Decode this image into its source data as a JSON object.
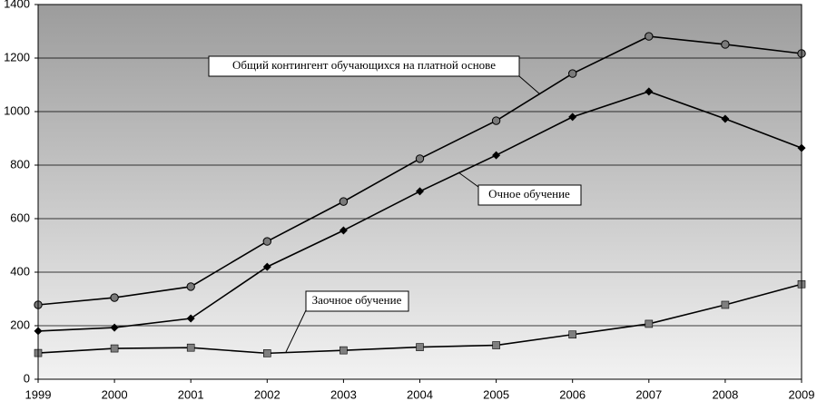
{
  "chart_data": {
    "type": "line",
    "x": [
      1999,
      2000,
      2001,
      2002,
      2003,
      2004,
      2005,
      2006,
      2007,
      2008,
      2009
    ],
    "xlim": [
      1999,
      2009
    ],
    "xticks": [
      1999,
      2000,
      2001,
      2002,
      2003,
      2004,
      2005,
      2006,
      2007,
      2008,
      2009
    ],
    "ylim": [
      0,
      1400
    ],
    "yticks": [
      0,
      200,
      400,
      600,
      800,
      1000,
      1200,
      1400
    ],
    "grid": true,
    "series": [
      {
        "name": "Общий контингент обучающихся на платной основе",
        "color": "#000000",
        "marker": "circle",
        "values": [
          278,
          305,
          346,
          515,
          664,
          824,
          966,
          1142,
          1281,
          1251,
          1217
        ]
      },
      {
        "name": "Очное обучение",
        "color": "#000000",
        "marker": "diamond",
        "values": [
          180,
          193,
          227,
          420,
          556,
          702,
          837,
          980,
          1075,
          973,
          864
        ]
      },
      {
        "name": "Заочное обучение",
        "color": "#000000",
        "marker": "square",
        "values": [
          98,
          115,
          118,
          97,
          108,
          120,
          127,
          167,
          207,
          278,
          355
        ]
      }
    ]
  }
}
